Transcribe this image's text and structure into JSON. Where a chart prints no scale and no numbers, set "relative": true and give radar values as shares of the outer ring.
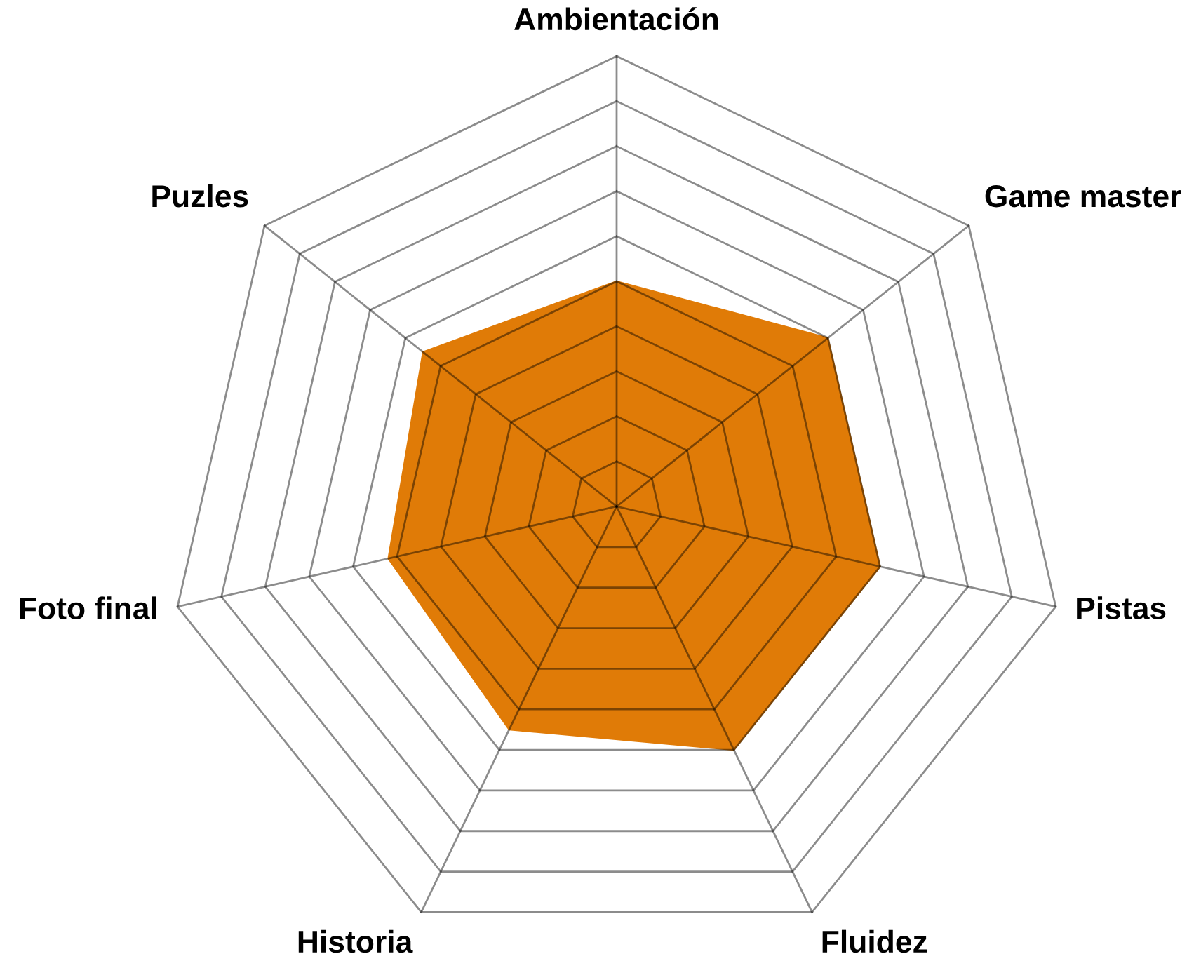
{
  "chart_data": {
    "type": "radar",
    "categories": [
      "Ambientación",
      "Game master",
      "Pistas",
      "Fluidez",
      "Historia",
      "Foto final",
      "Puzles"
    ],
    "relative": true,
    "grid": true,
    "series": [
      {
        "color": "#e07b07",
        "values": [
          0.5,
          0.6,
          0.6,
          0.6,
          0.55,
          0.52,
          0.55
        ]
      }
    ]
  }
}
